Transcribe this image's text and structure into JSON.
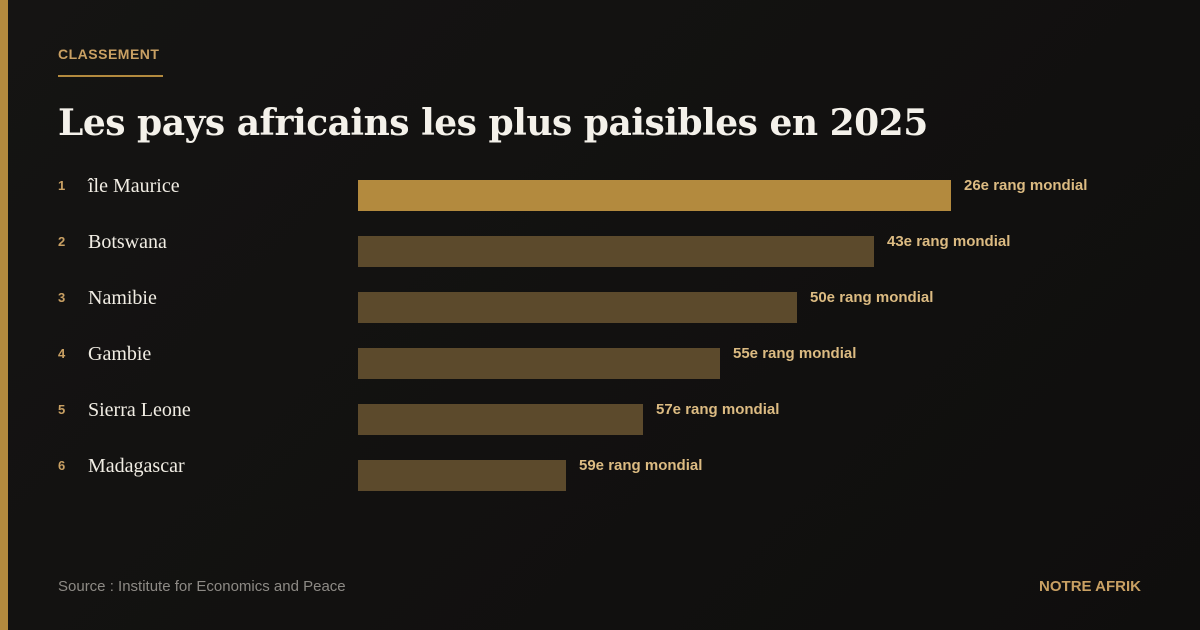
{
  "header": {
    "kicker": "CLASSEMENT",
    "title": "Les pays africains les plus paisibles en 2025"
  },
  "items": [
    {
      "rank": "1",
      "country": "île Maurice",
      "label": "26e rang mondial"
    },
    {
      "rank": "2",
      "country": "Botswana",
      "label": "43e rang mondial"
    },
    {
      "rank": "3",
      "country": "Namibie",
      "label": "50e rang mondial"
    },
    {
      "rank": "4",
      "country": "Gambie",
      "label": "55e rang mondial"
    },
    {
      "rank": "5",
      "country": "Sierra Leone",
      "label": "57e rang mondial"
    },
    {
      "rank": "6",
      "country": "Madagascar",
      "label": "59e rang mondial"
    }
  ],
  "footer": {
    "source": "Source : Institute for Economics and Peace",
    "brand": "NOTRE AFRIK"
  }
}
